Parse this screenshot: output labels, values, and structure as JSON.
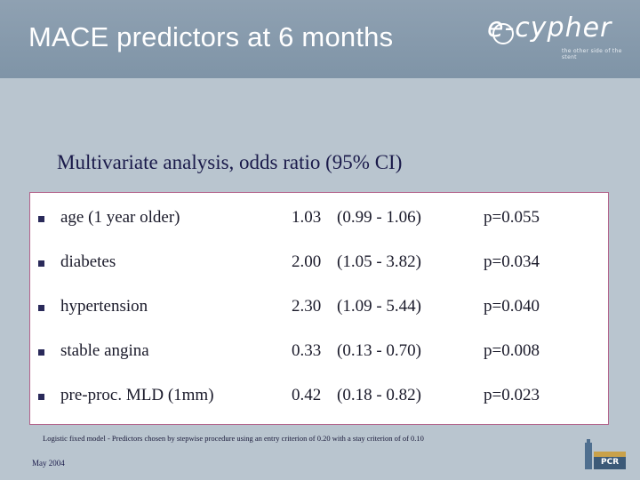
{
  "header": {
    "title": "MACE predictors at 6 months",
    "logo_text": "e-cypher",
    "logo_tagline": "the other side of the stent"
  },
  "subtitle": "Multivariate analysis, odds ratio (95% CI)",
  "table": {
    "rows": [
      {
        "variable": "age (1 year older)",
        "odds_ratio": "1.03",
        "ci": "(0.99 - 1.06)",
        "p": "p=0.055"
      },
      {
        "variable": "diabetes",
        "odds_ratio": "2.00",
        "ci": "(1.05 - 3.82)",
        "p": "p=0.034"
      },
      {
        "variable": "hypertension",
        "odds_ratio": "2.30",
        "ci": "(1.09 - 5.44)",
        "p": "p=0.040"
      },
      {
        "variable": "stable angina",
        "odds_ratio": "0.33",
        "ci": "(0.13 - 0.70)",
        "p": "p=0.008"
      },
      {
        "variable": "pre-proc. MLD (1mm)",
        "odds_ratio": "0.42",
        "ci": "(0.18 - 0.82)",
        "p": "p=0.023"
      }
    ]
  },
  "footnote": "Logistic fixed model - Predictors chosen by stepwise procedure using an entry criterion of 0.20 with a stay criterion of of 0.10",
  "date": "May 2004",
  "pcr_logo_text": "PCR",
  "colors": {
    "header": "#8fa1b2",
    "background": "#b9c5cf",
    "border": "#b2628a",
    "text": "#1a1a4a"
  }
}
